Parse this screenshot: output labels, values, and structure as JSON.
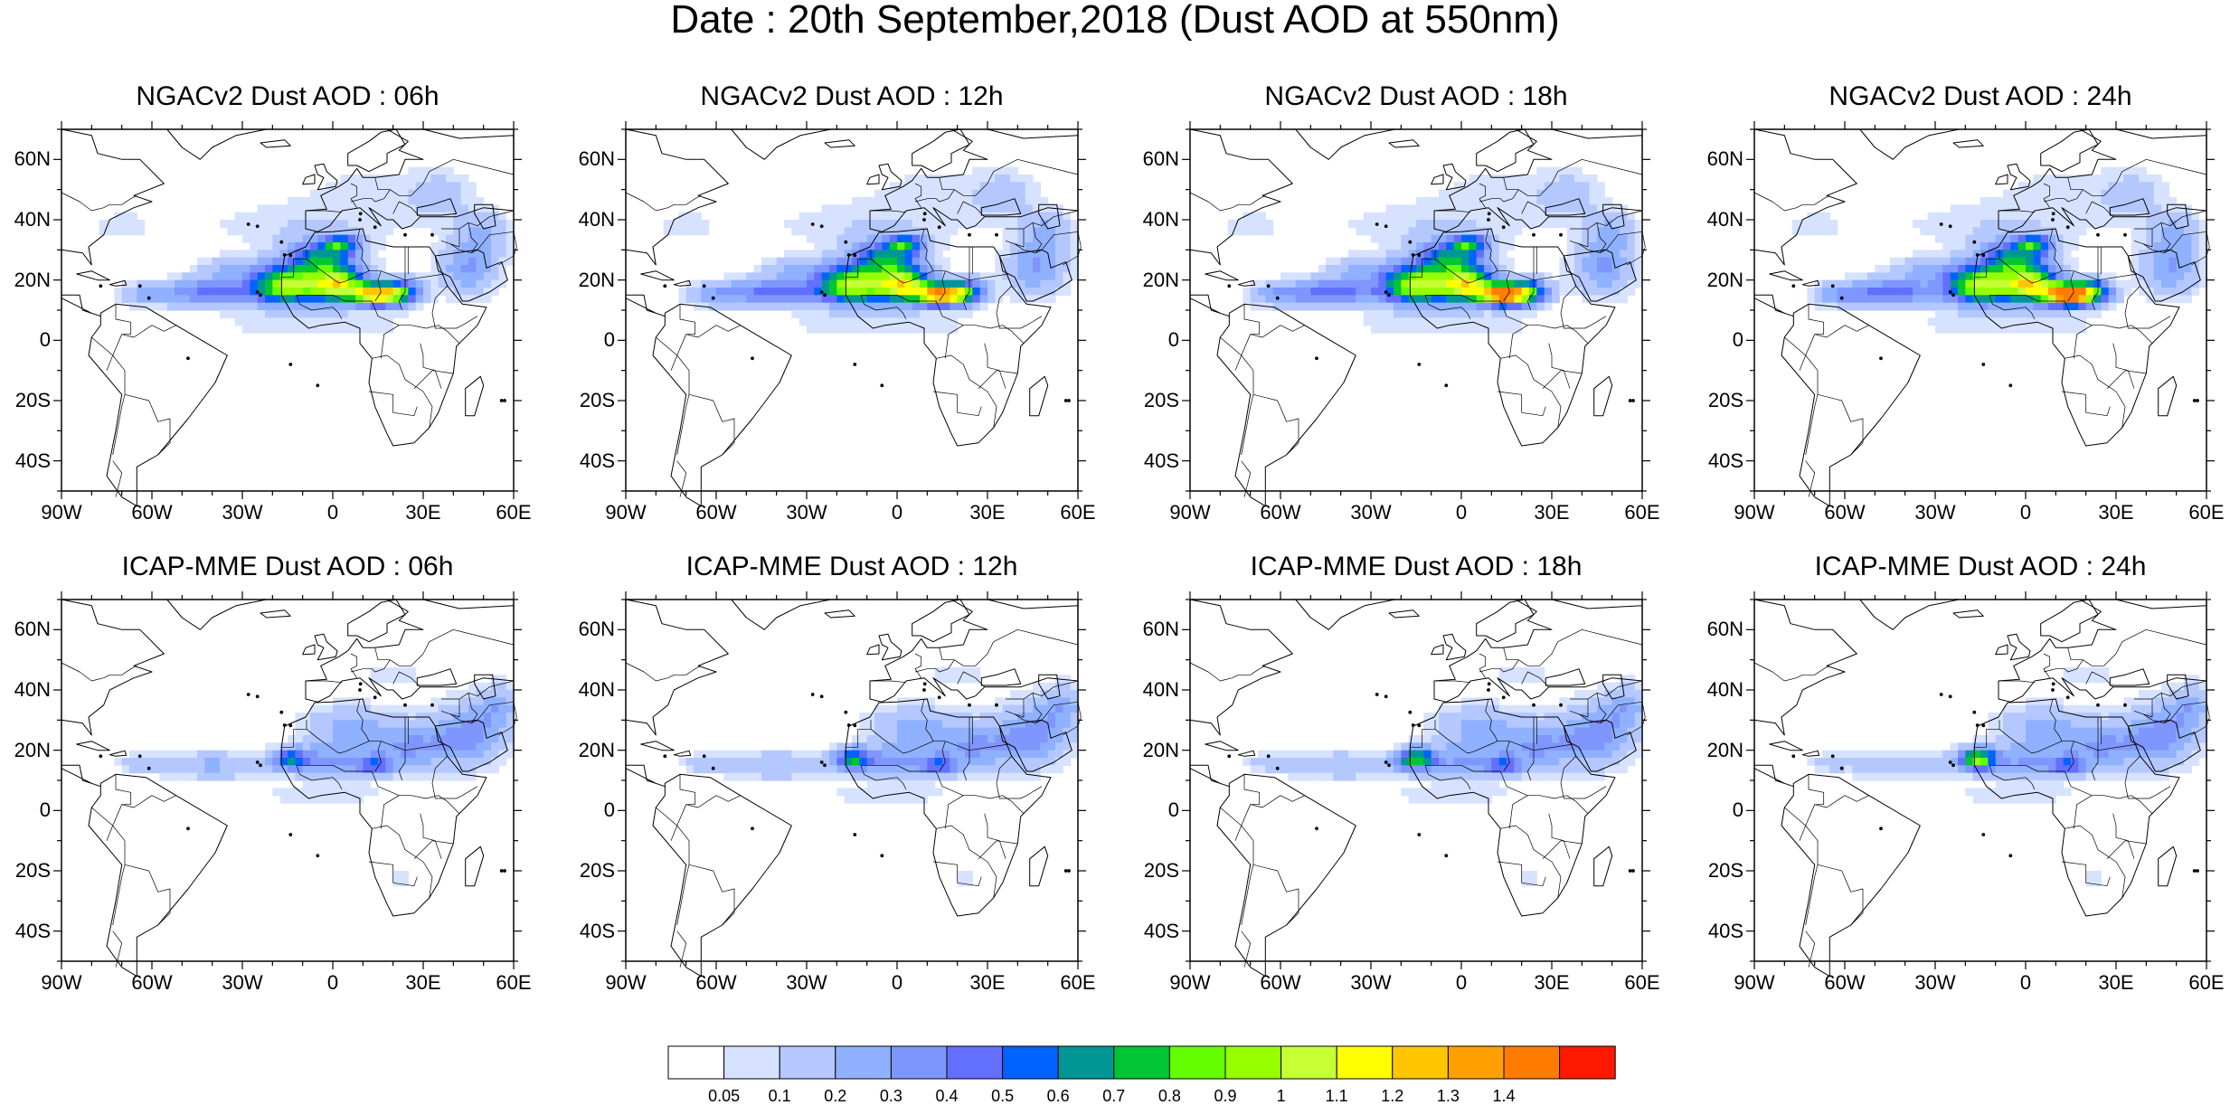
{
  "title": "Date : 20th September,2018 (Dust AOD at 550nm)",
  "colors": {
    "outline": "#000000",
    "levels": [
      "#ffffff",
      "#d6e2ff",
      "#b4c8ff",
      "#8fb1ff",
      "#7f96ff",
      "#6370ff",
      "#0063ff",
      "#009696",
      "#00c633",
      "#63ff00",
      "#96ff00",
      "#c6ff33",
      "#ffff00",
      "#ffc600",
      "#ffa000",
      "#ff7c00",
      "#ff1900"
    ]
  },
  "axes": {
    "lon_ticks": [
      "90W",
      "60W",
      "30W",
      "0",
      "30E",
      "60E"
    ],
    "lat_ticks": [
      "60N",
      "40N",
      "20N",
      "0",
      "20S",
      "40S"
    ],
    "lon_range": [
      -90,
      60
    ],
    "lat_range": [
      -50,
      70
    ]
  },
  "panels": [
    {
      "title": "NGACv2 Dust AOD : 06h",
      "model": "ngac",
      "hour": 6
    },
    {
      "title": "NGACv2 Dust AOD : 12h",
      "model": "ngac",
      "hour": 12
    },
    {
      "title": "NGACv2 Dust AOD : 18h",
      "model": "ngac",
      "hour": 18
    },
    {
      "title": "NGACv2 Dust AOD : 24h",
      "model": "ngac",
      "hour": 24
    },
    {
      "title": "ICAP-MME Dust AOD : 06h",
      "model": "icap",
      "hour": 6
    },
    {
      "title": "ICAP-MME Dust AOD : 12h",
      "model": "icap",
      "hour": 12
    },
    {
      "title": "ICAP-MME Dust AOD : 18h",
      "model": "icap",
      "hour": 18
    },
    {
      "title": "ICAP-MME Dust AOD : 24h",
      "model": "icap",
      "hour": 24
    }
  ],
  "colorbar": {
    "labels": [
      "0.05",
      "0.1",
      "0.2",
      "0.3",
      "0.4",
      "0.5",
      "0.6",
      "0.7",
      "0.8",
      "0.9",
      "1",
      "1.1",
      "1.2",
      "1.3",
      "1.4"
    ]
  }
}
